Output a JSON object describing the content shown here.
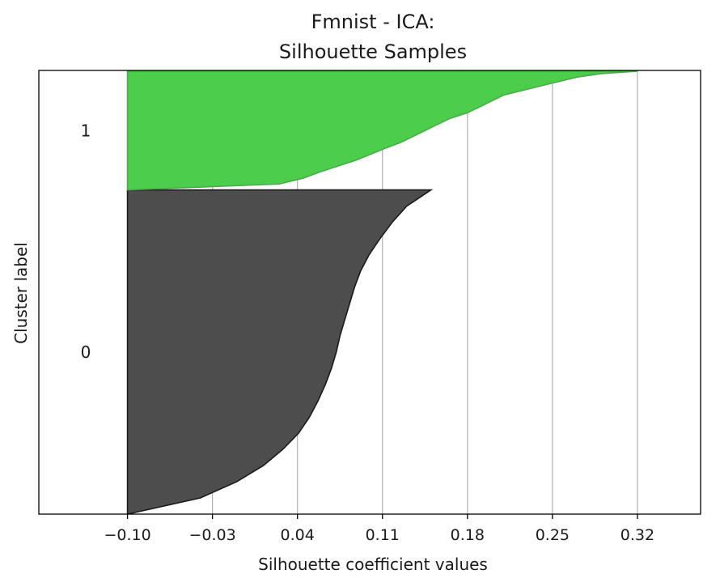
{
  "chart_data": {
    "type": "silhouette",
    "title_lines": [
      "Fmnist - ICA:",
      "Silhouette Samples"
    ],
    "xlabel": "Silhouette coefficient values",
    "ylabel": "Cluster label",
    "xlim": [
      -0.173,
      0.372
    ],
    "xticks": [
      -0.1,
      -0.03,
      0.04,
      0.11,
      0.18,
      0.25,
      0.32
    ],
    "xtick_labels": [
      "−0.10",
      "−0.03",
      "0.04",
      "0.11",
      "0.18",
      "0.25",
      "0.32"
    ],
    "x_grid": true,
    "clusters": [
      {
        "label": "0",
        "color": "#4d4d4d",
        "edge": "#1a1a1a",
        "size_fraction": 0.732,
        "profile": [
          [
            0.0,
            0.15
          ],
          [
            0.05,
            0.13
          ],
          [
            0.1,
            0.118
          ],
          [
            0.15,
            0.108
          ],
          [
            0.2,
            0.099
          ],
          [
            0.25,
            0.092
          ],
          [
            0.3,
            0.087
          ],
          [
            0.35,
            0.083
          ],
          [
            0.4,
            0.079
          ],
          [
            0.45,
            0.075
          ],
          [
            0.5,
            0.072
          ],
          [
            0.55,
            0.068
          ],
          [
            0.6,
            0.063
          ],
          [
            0.65,
            0.057
          ],
          [
            0.7,
            0.05
          ],
          [
            0.75,
            0.041
          ],
          [
            0.8,
            0.028
          ],
          [
            0.85,
            0.012
          ],
          [
            0.9,
            -0.01
          ],
          [
            0.95,
            -0.04
          ],
          [
            1.0,
            -0.1
          ]
        ]
      },
      {
        "label": "1",
        "color": "#4cce4c",
        "edge": "#3cb43c",
        "size_fraction": 0.268,
        "profile": [
          [
            0.0,
            0.32
          ],
          [
            0.02,
            0.29
          ],
          [
            0.05,
            0.27
          ],
          [
            0.1,
            0.25
          ],
          [
            0.15,
            0.23
          ],
          [
            0.2,
            0.21
          ],
          [
            0.25,
            0.2
          ],
          [
            0.3,
            0.19
          ],
          [
            0.35,
            0.18
          ],
          [
            0.4,
            0.165
          ],
          [
            0.45,
            0.155
          ],
          [
            0.5,
            0.145
          ],
          [
            0.55,
            0.135
          ],
          [
            0.6,
            0.125
          ],
          [
            0.65,
            0.112
          ],
          [
            0.7,
            0.1
          ],
          [
            0.75,
            0.088
          ],
          [
            0.8,
            0.073
          ],
          [
            0.85,
            0.058
          ],
          [
            0.9,
            0.045
          ],
          [
            0.95,
            0.025
          ],
          [
            1.0,
            -0.1
          ]
        ]
      }
    ]
  }
}
